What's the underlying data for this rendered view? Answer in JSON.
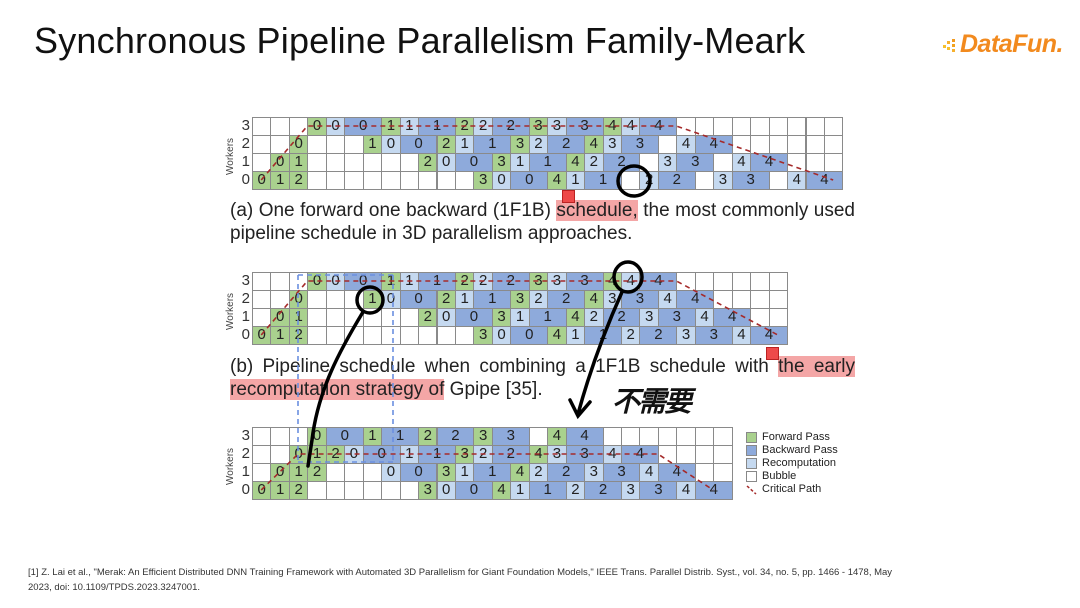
{
  "slide": {
    "title": "Synchronous Pipeline Parallelism Family-Meark",
    "logo_text": "DataFun.",
    "logo_color": "#f28a1e"
  },
  "diagrams": [
    {
      "id": "a",
      "axis_label": "Workers",
      "row_labels": [
        "3",
        "2",
        "1",
        "0"
      ],
      "rows": [
        "E E E F0 R0 B0 F1 R1 B1 F2 R2 B2 F3 R3 B3 F4 R4 B4 E E E E E E E E E",
        "E E F0 E E E F1 R0 B0 F2 R1 B1 F3 R2 B2 F4 R3 B3 E R4 B4 E E E E E E",
        "E F0 F1 E E E E E E F2 R0 B0 F3 R1 B1 F4 R2 B2 E R3 B3 E R4 B4 E E E",
        "F0 F1 F2 E E E E E E E E E F3 R0 B0 F4 R1 B1 E R2 B2 E R3 B3 E R4 B4"
      ]
    },
    {
      "id": "b",
      "axis_label": "Workers",
      "row_labels": [
        "3",
        "2",
        "1",
        "0"
      ],
      "rows": [
        "E E E F0 R0 B0 F1 R1 B1 F2 R2 B2 F3 R3 B3 F4 R4 B4 E E E E E E",
        "E E F0 E E E F1 R0 B0 F2 R1 B1 F3 R2 B2 F4 R3 B3 R4 B4 E E E E",
        "E F0 F1 E E E E E E F2 R0 B0 F3 R1 B1 F4 R2 B2 R3 B3 R4 B4 E E",
        "F0 F1 F2 E E E E E E E E E F3 R0 B0 F4 R1 B1 R2 B2 R3 B3 R4 B4"
      ]
    },
    {
      "id": "c",
      "axis_label": "Workers",
      "row_labels": [
        "3",
        "2",
        "1",
        "0"
      ],
      "rows": [
        "E E E F0 B0 F1 B1 F2 B2 F3 B3 E F4 B4 E E E E E E E",
        "E E F0 F1 F2 R0 B0 R1 B1 F3 R2 B2 F4 R3 B3 R4 B4 E E E E",
        "E F0 F1 F2 E E E R0 B0 F3 R1 B1 F4 R2 B2 R3 B3 R4 B4 E E",
        "F0 F1 F2 E E E E E E F3 R0 B0 F4 R1 B1 R2 B2 R3 B3 R4 B4"
      ]
    }
  ],
  "captions": {
    "a": {
      "pre": "(a) One forward one backward (1F1B) ",
      "highlight": "schedule,",
      "post": " the most commonly used pipeline schedule in 3D parallelism approaches."
    },
    "b": {
      "pre": "(b) Pipeline schedule when combining a 1F1B schedule with ",
      "highlight": "the early recomputation strategy of",
      "post": " Gpipe [35]."
    }
  },
  "legend": [
    {
      "label": "Forward Pass",
      "color": "#a9d18e"
    },
    {
      "label": "Backward Pass",
      "color": "#8eaadb"
    },
    {
      "label": "Recomputation",
      "color": "#c5d9f0"
    },
    {
      "label": "Bubble",
      "color": "#ffffff"
    },
    {
      "label": "Critical Path",
      "color": "#a52a2a"
    }
  ],
  "annotation": {
    "handwritten": "不需要"
  },
  "footnote": {
    "line1": "[1] Z. Lai et al., \"Merak: An Efficient Distributed DNN Training Framework with Automated 3D Parallelism for Giant Foundation Models,\" IEEE Trans. Parallel Distrib. Syst., vol. 34, no. 5, pp. 1466 - 1478, May",
    "line2": "2023, doi: 10.1109/TPDS.2023.3247001."
  }
}
